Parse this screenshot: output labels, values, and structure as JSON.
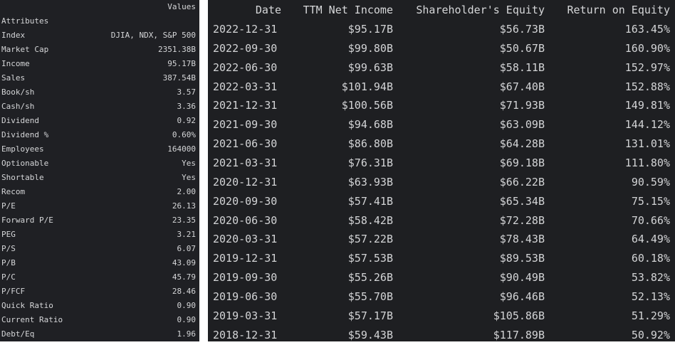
{
  "attributes_panel": {
    "header": {
      "key": "Attributes",
      "value": "Values"
    },
    "rows": [
      {
        "key": "Index",
        "value": "DJIA, NDX, S&P 500"
      },
      {
        "key": "Market Cap",
        "value": "2351.38B"
      },
      {
        "key": "Income",
        "value": "95.17B"
      },
      {
        "key": "Sales",
        "value": "387.54B"
      },
      {
        "key": "Book/sh",
        "value": "3.57"
      },
      {
        "key": "Cash/sh",
        "value": "3.36"
      },
      {
        "key": "Dividend",
        "value": "0.92"
      },
      {
        "key": "Dividend %",
        "value": "0.60%"
      },
      {
        "key": "Employees",
        "value": "164000"
      },
      {
        "key": "Optionable",
        "value": "Yes"
      },
      {
        "key": "Shortable",
        "value": "Yes"
      },
      {
        "key": "Recom",
        "value": "2.00"
      },
      {
        "key": "P/E",
        "value": "26.13"
      },
      {
        "key": "Forward P/E",
        "value": "23.35"
      },
      {
        "key": "PEG",
        "value": "3.21"
      },
      {
        "key": "P/S",
        "value": "6.07"
      },
      {
        "key": "P/B",
        "value": "43.09"
      },
      {
        "key": "P/C",
        "value": "45.79"
      },
      {
        "key": "P/FCF",
        "value": "28.46"
      },
      {
        "key": "Quick Ratio",
        "value": "0.90"
      },
      {
        "key": "Current Ratio",
        "value": "0.90"
      },
      {
        "key": "Debt/Eq",
        "value": "1.96"
      }
    ]
  },
  "roe_table": {
    "columns": [
      "Date",
      "TTM Net Income",
      "Shareholder's Equity",
      "Return on Equity"
    ],
    "rows": [
      [
        "2022-12-31",
        "$95.17B",
        "$56.73B",
        "163.45%"
      ],
      [
        "2022-09-30",
        "$99.80B",
        "$50.67B",
        "160.90%"
      ],
      [
        "2022-06-30",
        "$99.63B",
        "$58.11B",
        "152.97%"
      ],
      [
        "2022-03-31",
        "$101.94B",
        "$67.40B",
        "152.88%"
      ],
      [
        "2021-12-31",
        "$100.56B",
        "$71.93B",
        "149.81%"
      ],
      [
        "2021-09-30",
        "$94.68B",
        "$63.09B",
        "144.12%"
      ],
      [
        "2021-06-30",
        "$86.80B",
        "$64.28B",
        "131.01%"
      ],
      [
        "2021-03-31",
        "$76.31B",
        "$69.18B",
        "111.80%"
      ],
      [
        "2020-12-31",
        "$63.93B",
        "$66.22B",
        "90.59%"
      ],
      [
        "2020-09-30",
        "$57.41B",
        "$65.34B",
        "75.15%"
      ],
      [
        "2020-06-30",
        "$58.42B",
        "$72.28B",
        "70.66%"
      ],
      [
        "2020-03-31",
        "$57.22B",
        "$78.43B",
        "64.49%"
      ],
      [
        "2019-12-31",
        "$57.53B",
        "$89.53B",
        "60.18%"
      ],
      [
        "2019-09-30",
        "$55.26B",
        "$90.49B",
        "53.82%"
      ],
      [
        "2019-06-30",
        "$55.70B",
        "$96.46B",
        "52.13%"
      ],
      [
        "2019-03-31",
        "$57.17B",
        "$105.86B",
        "51.29%"
      ],
      [
        "2018-12-31",
        "$59.43B",
        "$117.89B",
        "50.92%"
      ]
    ]
  }
}
